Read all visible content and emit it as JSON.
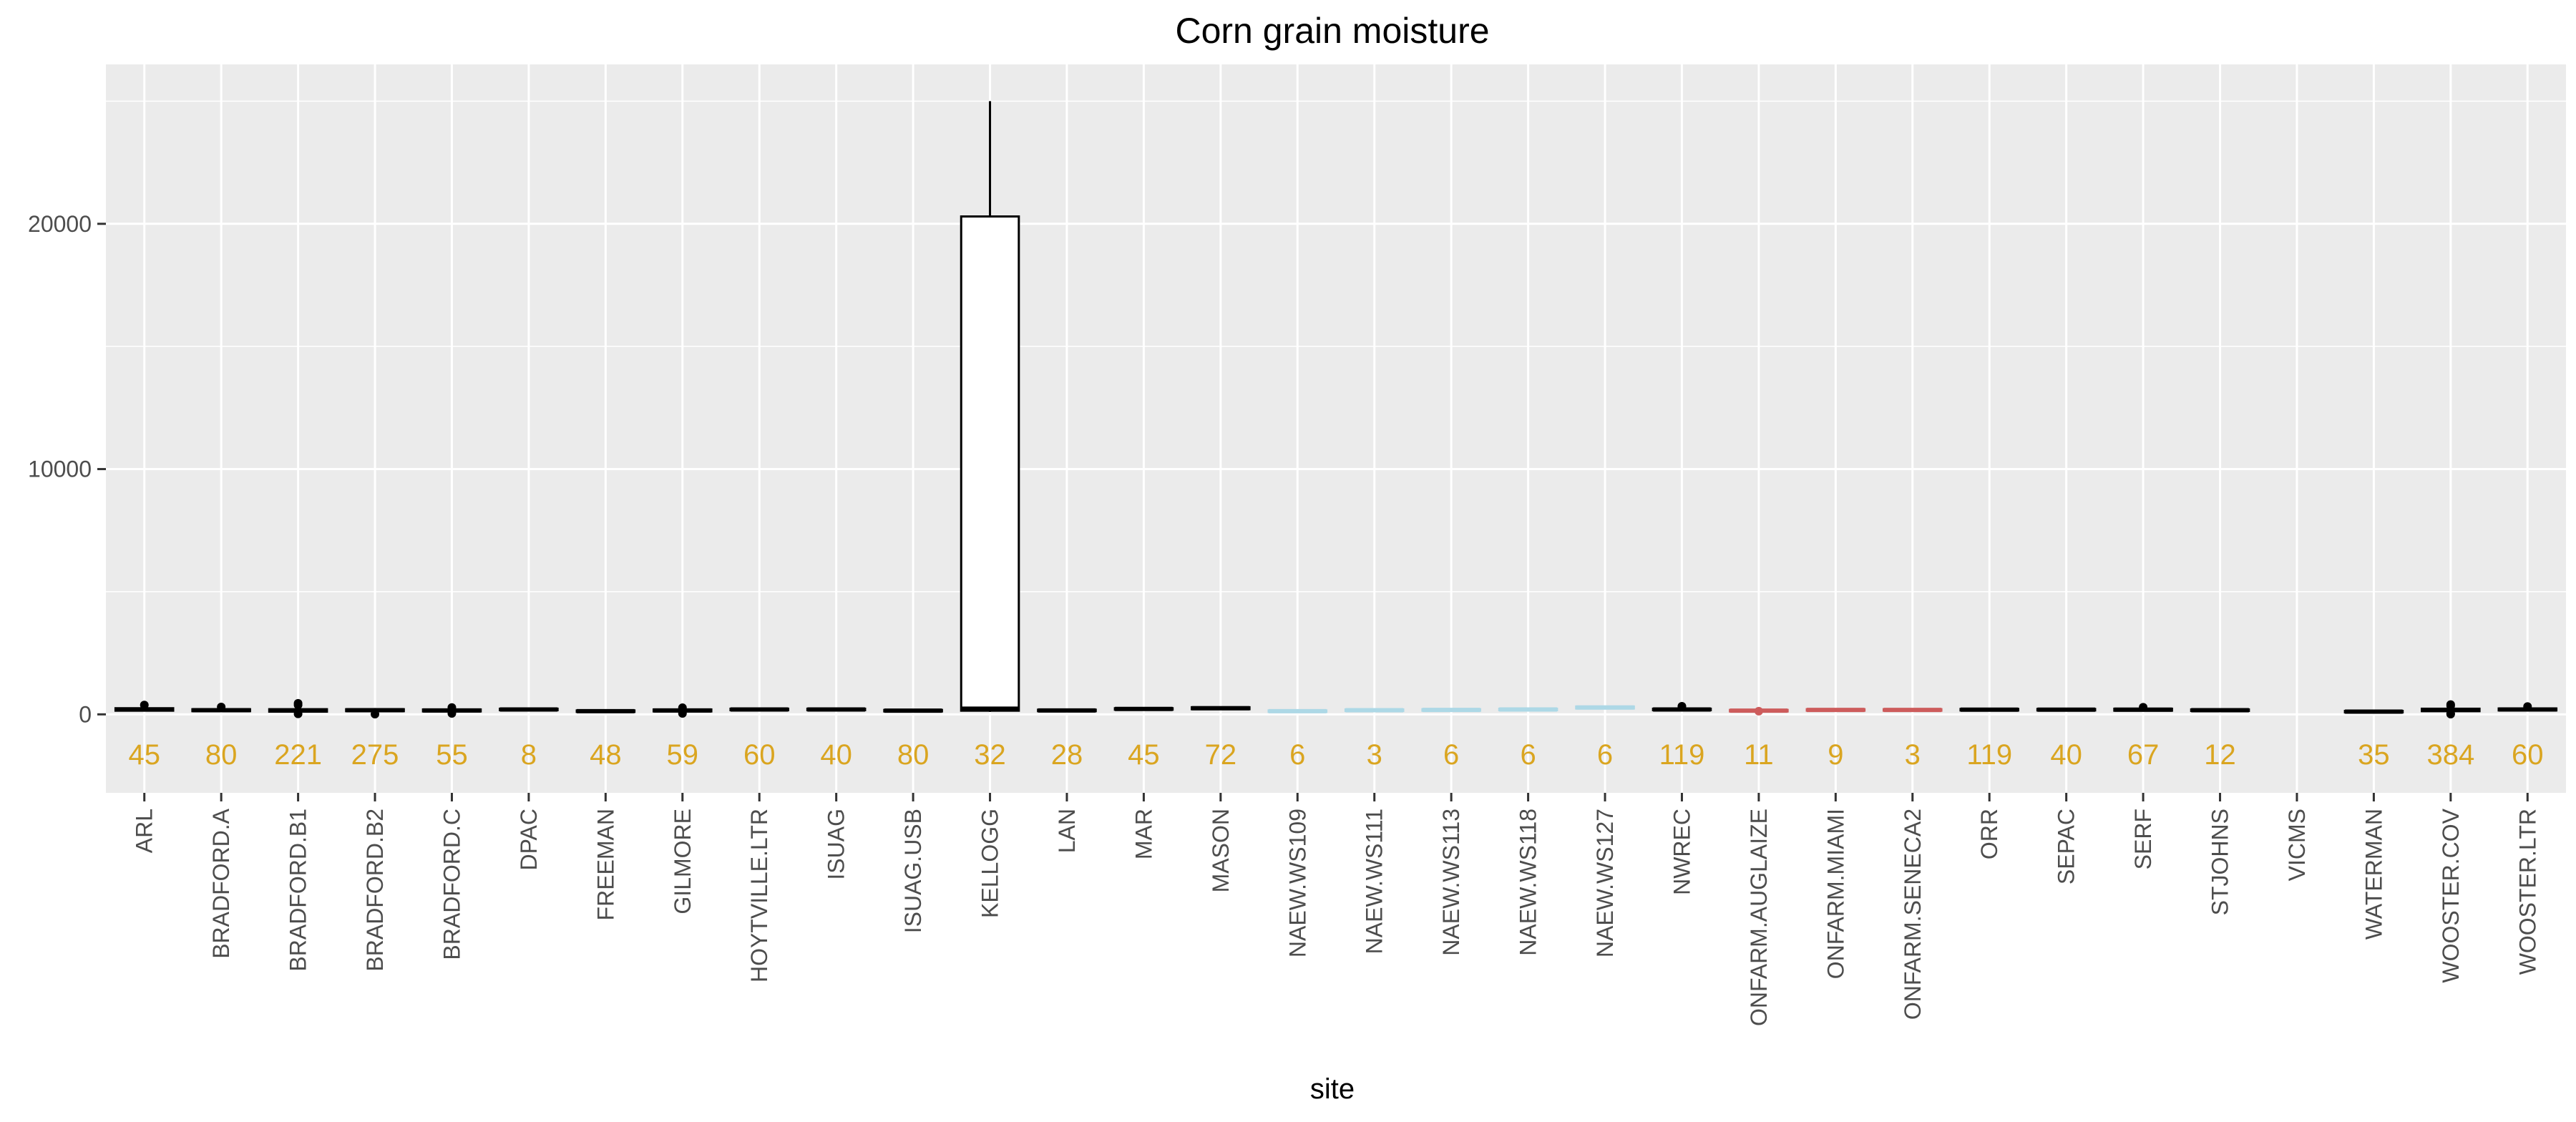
{
  "chart_data": {
    "type": "box",
    "title": "Corn grain moisture",
    "xlabel": "site",
    "ylabel": "",
    "ylim": [
      -3200,
      26500
    ],
    "yticks": [
      0,
      10000,
      20000
    ],
    "ytick_labels": [
      "0",
      "10000",
      "20000"
    ],
    "grid": true,
    "legend": "none",
    "colors": {
      "panel": "#ebebeb",
      "grid_major": "#ffffff",
      "box_default": "#000000",
      "box_naew": "#add8e6",
      "box_onfarm": "#cd5c5c",
      "count_label": "#daa520"
    },
    "sites": [
      {
        "site": "ARL",
        "n": "45",
        "q1": 150,
        "median": 200,
        "q3": 250,
        "lower": 120,
        "upper": 320,
        "outliers": [
          380
        ],
        "color": "#000000"
      },
      {
        "site": "BRADFORD.A",
        "n": "80",
        "q1": 130,
        "median": 170,
        "q3": 210,
        "lower": 90,
        "upper": 260,
        "outliers": [
          300
        ],
        "color": "#000000"
      },
      {
        "site": "BRADFORD.B1",
        "n": "221",
        "q1": 110,
        "median": 160,
        "q3": 210,
        "lower": 50,
        "upper": 280,
        "outliers": [
          380,
          450,
          20
        ],
        "color": "#000000"
      },
      {
        "site": "BRADFORD.B2",
        "n": "275",
        "q1": 130,
        "median": 170,
        "q3": 210,
        "lower": 80,
        "upper": 260,
        "outliers": [
          10
        ],
        "color": "#000000"
      },
      {
        "site": "BRADFORD.C",
        "n": "55",
        "q1": 120,
        "median": 160,
        "q3": 200,
        "lower": 80,
        "upper": 250,
        "outliers": [
          280,
          40
        ],
        "color": "#000000"
      },
      {
        "site": "DPAC",
        "n": "8",
        "q1": 170,
        "median": 200,
        "q3": 230,
        "lower": 140,
        "upper": 260,
        "outliers": [],
        "color": "#000000"
      },
      {
        "site": "FREEMAN",
        "n": "48",
        "q1": 100,
        "median": 130,
        "q3": 160,
        "lower": 70,
        "upper": 190,
        "outliers": [],
        "color": "#000000"
      },
      {
        "site": "GILMORE",
        "n": "59",
        "q1": 120,
        "median": 160,
        "q3": 200,
        "lower": 70,
        "upper": 240,
        "outliers": [
          40,
          270
        ],
        "color": "#000000"
      },
      {
        "site": "HOYTVILLE.LTR",
        "n": "60",
        "q1": 170,
        "median": 200,
        "q3": 230,
        "lower": 130,
        "upper": 260,
        "outliers": [],
        "color": "#000000"
      },
      {
        "site": "ISUAG",
        "n": "40",
        "q1": 170,
        "median": 200,
        "q3": 230,
        "lower": 140,
        "upper": 260,
        "outliers": [],
        "color": "#000000"
      },
      {
        "site": "ISUAG.USB",
        "n": "80",
        "q1": 120,
        "median": 150,
        "q3": 180,
        "lower": 90,
        "upper": 210,
        "outliers": [],
        "color": "#000000"
      },
      {
        "site": "KELLOGG",
        "n": "32",
        "q1": 150,
        "median": 230,
        "q3": 20300,
        "lower": 100,
        "upper": 25000,
        "outliers": [],
        "color": "#000000"
      },
      {
        "site": "LAN",
        "n": "28",
        "q1": 130,
        "median": 160,
        "q3": 190,
        "lower": 100,
        "upper": 220,
        "outliers": [],
        "color": "#000000"
      },
      {
        "site": "MAR",
        "n": "45",
        "q1": 190,
        "median": 220,
        "q3": 250,
        "lower": 160,
        "upper": 280,
        "outliers": [],
        "color": "#000000"
      },
      {
        "site": "MASON",
        "n": "72",
        "q1": 210,
        "median": 250,
        "q3": 290,
        "lower": 170,
        "upper": 320,
        "outliers": [],
        "color": "#000000"
      },
      {
        "site": "NAEW.WS109",
        "n": "6",
        "q1": 100,
        "median": 130,
        "q3": 160,
        "lower": 80,
        "upper": 180,
        "outliers": [],
        "color": "#add8e6"
      },
      {
        "site": "NAEW.WS111",
        "n": "3",
        "q1": 140,
        "median": 170,
        "q3": 200,
        "lower": 120,
        "upper": 220,
        "outliers": [],
        "color": "#add8e6"
      },
      {
        "site": "NAEW.WS113",
        "n": "6",
        "q1": 150,
        "median": 180,
        "q3": 210,
        "lower": 130,
        "upper": 230,
        "outliers": [],
        "color": "#add8e6"
      },
      {
        "site": "NAEW.WS118",
        "n": "6",
        "q1": 170,
        "median": 200,
        "q3": 230,
        "lower": 150,
        "upper": 250,
        "outliers": [],
        "color": "#add8e6"
      },
      {
        "site": "NAEW.WS127",
        "n": "6",
        "q1": 240,
        "median": 280,
        "q3": 320,
        "lower": 210,
        "upper": 350,
        "outliers": [],
        "color": "#add8e6"
      },
      {
        "site": "NWREC",
        "n": "119",
        "q1": 170,
        "median": 200,
        "q3": 230,
        "lower": 130,
        "upper": 270,
        "outliers": [
          330,
          300
        ],
        "color": "#000000"
      },
      {
        "site": "ONFARM.AUGLAIZE",
        "n": "11",
        "q1": 120,
        "median": 150,
        "q3": 180,
        "lower": 90,
        "upper": 200,
        "outliers": [
          130
        ],
        "color": "#cd5c5c"
      },
      {
        "site": "ONFARM.MIAMI",
        "n": "9",
        "q1": 150,
        "median": 180,
        "q3": 210,
        "lower": 130,
        "upper": 230,
        "outliers": [],
        "color": "#cd5c5c"
      },
      {
        "site": "ONFARM.SENECA2",
        "n": "3",
        "q1": 150,
        "median": 180,
        "q3": 210,
        "lower": 130,
        "upper": 230,
        "outliers": [],
        "color": "#cd5c5c"
      },
      {
        "site": "ORR",
        "n": "119",
        "q1": 160,
        "median": 190,
        "q3": 220,
        "lower": 120,
        "upper": 260,
        "outliers": [],
        "color": "#000000"
      },
      {
        "site": "SEPAC",
        "n": "40",
        "q1": 160,
        "median": 190,
        "q3": 220,
        "lower": 130,
        "upper": 250,
        "outliers": [],
        "color": "#000000"
      },
      {
        "site": "SERF",
        "n": "67",
        "q1": 150,
        "median": 190,
        "q3": 230,
        "lower": 110,
        "upper": 270,
        "outliers": [
          290
        ],
        "color": "#000000"
      },
      {
        "site": "STJOHNS",
        "n": "12",
        "q1": 140,
        "median": 170,
        "q3": 200,
        "lower": 110,
        "upper": 220,
        "outliers": [],
        "color": "#000000"
      },
      {
        "site": "VICMS",
        "n": "",
        "q1": null,
        "median": null,
        "q3": null,
        "lower": null,
        "upper": null,
        "outliers": [],
        "color": "#000000"
      },
      {
        "site": "WATERMAN",
        "n": "35",
        "q1": 80,
        "median": 110,
        "q3": 140,
        "lower": 50,
        "upper": 170,
        "outliers": [],
        "color": "#000000"
      },
      {
        "site": "WOOSTER.COV",
        "n": "384",
        "q1": 130,
        "median": 180,
        "q3": 230,
        "lower": 60,
        "upper": 300,
        "outliers": [
          400,
          350,
          30,
          10
        ],
        "color": "#000000"
      },
      {
        "site": "WOOSTER.LTR",
        "n": "60",
        "q1": 160,
        "median": 200,
        "q3": 240,
        "lower": 120,
        "upper": 280,
        "outliers": [
          320
        ],
        "color": "#000000"
      }
    ]
  }
}
